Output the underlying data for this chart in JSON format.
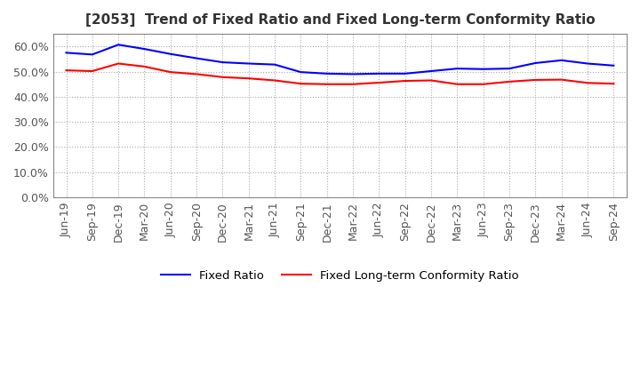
{
  "title": "[2053]  Trend of Fixed Ratio and Fixed Long-term Conformity Ratio",
  "title_fontsize": 11,
  "ylim": [
    0.0,
    0.65
  ],
  "yticks": [
    0.0,
    0.1,
    0.2,
    0.3,
    0.4,
    0.5,
    0.6
  ],
  "background_color": "#ffffff",
  "grid_color": "#aaaaaa",
  "legend_labels": [
    "Fixed Ratio",
    "Fixed Long-term Conformity Ratio"
  ],
  "legend_colors": [
    "#0000ff",
    "#ff0000"
  ],
  "x_labels": [
    "Jun-19",
    "Sep-19",
    "Dec-19",
    "Mar-20",
    "Jun-20",
    "Sep-20",
    "Dec-20",
    "Mar-21",
    "Jun-21",
    "Sep-21",
    "Dec-21",
    "Mar-22",
    "Jun-22",
    "Sep-22",
    "Dec-22",
    "Mar-23",
    "Jun-23",
    "Sep-23",
    "Dec-23",
    "Mar-24",
    "Jun-24",
    "Sep-24"
  ],
  "fixed_ratio": [
    0.575,
    0.568,
    0.607,
    0.59,
    0.57,
    0.553,
    0.537,
    0.532,
    0.528,
    0.498,
    0.492,
    0.49,
    0.492,
    0.492,
    0.502,
    0.512,
    0.51,
    0.512,
    0.534,
    0.545,
    0.532,
    0.524
  ],
  "fixed_lt_ratio": [
    0.505,
    0.502,
    0.532,
    0.52,
    0.498,
    0.49,
    0.478,
    0.473,
    0.465,
    0.452,
    0.45,
    0.45,
    0.456,
    0.463,
    0.465,
    0.45,
    0.45,
    0.46,
    0.467,
    0.468,
    0.455,
    0.452
  ]
}
